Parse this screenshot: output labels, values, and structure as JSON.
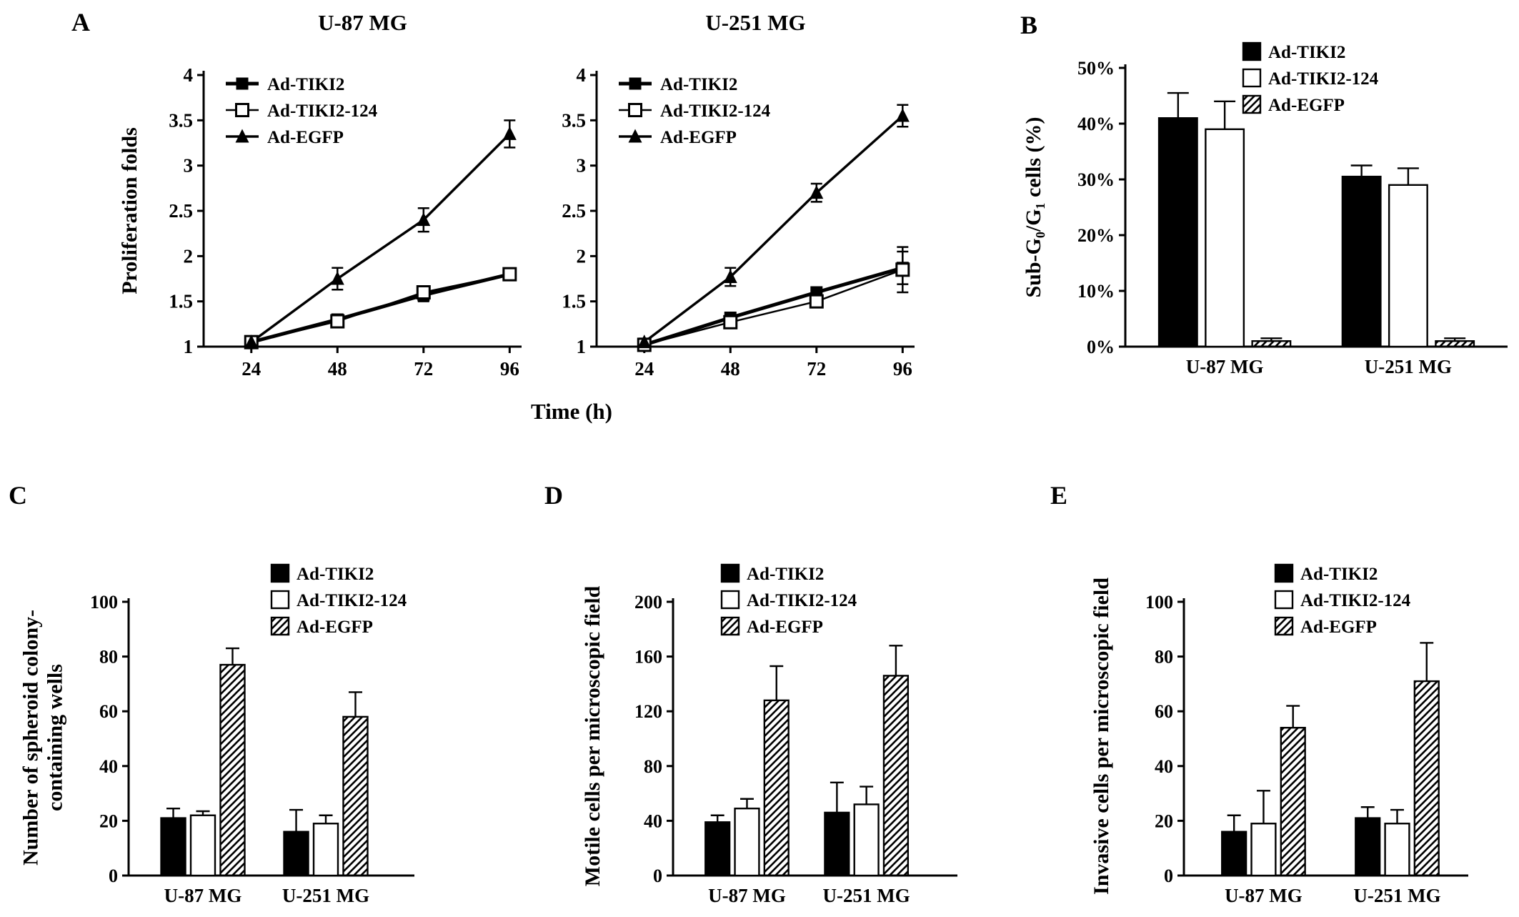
{
  "figure": {
    "background": "#ffffff",
    "ink": "#000000"
  },
  "panels": {
    "a": {
      "label": "A"
    },
    "b": {
      "label": "B"
    },
    "c": {
      "label": "C"
    },
    "d": {
      "label": "D"
    },
    "e": {
      "label": "E"
    }
  },
  "chart_data": [
    {
      "id": "prolif-u87",
      "type": "line",
      "title": "U-87 MG",
      "ylabel": "Proliferation folds",
      "xlabel": "Time (h)",
      "x": [
        24,
        48,
        72,
        96
      ],
      "ylim": [
        1,
        4
      ],
      "yticks": [
        1,
        1.5,
        2,
        2.5,
        3,
        3.5,
        4
      ],
      "legend_position": "top-left-inside",
      "series": [
        {
          "name": "Ad-TIKI2",
          "marker": "square-filled",
          "lw": 5,
          "values": [
            1.05,
            1.3,
            1.57,
            1.8
          ],
          "errors": [
            0.03,
            0.04,
            0.07,
            0.06
          ]
        },
        {
          "name": "Ad-TIKI2-124",
          "marker": "square-open",
          "lw": 2.5,
          "values": [
            1.05,
            1.28,
            1.6,
            1.8
          ],
          "errors": [
            0.03,
            0.04,
            0.05,
            0.06
          ]
        },
        {
          "name": "Ad-EGFP",
          "marker": "triangle-filled",
          "lw": 3.5,
          "values": [
            1.05,
            1.75,
            2.4,
            3.35
          ],
          "errors": [
            0.04,
            0.12,
            0.13,
            0.15
          ]
        }
      ]
    },
    {
      "id": "prolif-u251",
      "type": "line",
      "title": "U-251 MG",
      "ylabel": "Proliferation folds",
      "xlabel": "Time (h)",
      "x": [
        24,
        48,
        72,
        96
      ],
      "ylim": [
        1,
        4
      ],
      "yticks": [
        1,
        1.5,
        2,
        2.5,
        3,
        3.5,
        4
      ],
      "legend_position": "top-left-inside",
      "series": [
        {
          "name": "Ad-TIKI2",
          "marker": "square-filled",
          "lw": 5,
          "values": [
            1.02,
            1.32,
            1.6,
            1.87
          ],
          "errors": [
            0.03,
            0.05,
            0.05,
            0.18
          ]
        },
        {
          "name": "Ad-TIKI2-124",
          "marker": "square-open",
          "lw": 2.5,
          "values": [
            1.02,
            1.27,
            1.5,
            1.85
          ],
          "errors": [
            0.03,
            0.06,
            0.05,
            0.25
          ]
        },
        {
          "name": "Ad-EGFP",
          "marker": "triangle-filled",
          "lw": 3.5,
          "values": [
            1.05,
            1.77,
            2.7,
            3.55
          ],
          "errors": [
            0.04,
            0.1,
            0.1,
            0.12
          ]
        }
      ]
    },
    {
      "id": "subg1",
      "type": "bar",
      "ylabel": "Sub-G₀/G₁ cells (%)",
      "categories": [
        "U-87 MG",
        "U-251 MG"
      ],
      "ylim": [
        0,
        50
      ],
      "yticks": [
        0,
        10,
        20,
        30,
        40,
        50
      ],
      "ytick_suffix": "%",
      "legend_position": "top-right-inside",
      "series": [
        {
          "name": "Ad-TIKI2",
          "fill": "black",
          "values": [
            41,
            30.5
          ],
          "errors": [
            4.5,
            2
          ]
        },
        {
          "name": "Ad-TIKI2-124",
          "fill": "white",
          "values": [
            39,
            29
          ],
          "errors": [
            5,
            3
          ]
        },
        {
          "name": "Ad-EGFP",
          "fill": "hatch",
          "values": [
            1,
            1
          ],
          "errors": [
            0.5,
            0.5
          ]
        }
      ]
    },
    {
      "id": "spheroid",
      "type": "bar",
      "ylabel": "Number of spheroid colony-\ncontaining wells",
      "categories": [
        "U-87 MG",
        "U-251 MG"
      ],
      "ylim": [
        0,
        100
      ],
      "yticks": [
        0,
        20,
        40,
        60,
        80,
        100
      ],
      "ytick_suffix": "",
      "legend_position": "top-right-inside",
      "series": [
        {
          "name": "Ad-TIKI2",
          "fill": "black",
          "values": [
            21,
            16
          ],
          "errors": [
            3.5,
            8
          ]
        },
        {
          "name": "Ad-TIKI2-124",
          "fill": "white",
          "values": [
            22,
            19
          ],
          "errors": [
            1.5,
            3
          ]
        },
        {
          "name": "Ad-EGFP",
          "fill": "hatch",
          "values": [
            77,
            58
          ],
          "errors": [
            6,
            9
          ]
        }
      ]
    },
    {
      "id": "motile",
      "type": "bar",
      "ylabel": "Motile cells per microscopic field",
      "categories": [
        "U-87 MG",
        "U-251 MG"
      ],
      "ylim": [
        0,
        200
      ],
      "yticks": [
        0,
        40,
        80,
        120,
        160,
        200
      ],
      "ytick_suffix": "",
      "legend_position": "top-right-inside",
      "series": [
        {
          "name": "Ad-TIKI2",
          "fill": "black",
          "values": [
            39,
            46
          ],
          "errors": [
            5,
            22
          ]
        },
        {
          "name": "Ad-TIKI2-124",
          "fill": "white",
          "values": [
            49,
            52
          ],
          "errors": [
            7,
            13
          ]
        },
        {
          "name": "Ad-EGFP",
          "fill": "hatch",
          "values": [
            128,
            146
          ],
          "errors": [
            25,
            22
          ]
        }
      ]
    },
    {
      "id": "invasive",
      "type": "bar",
      "ylabel": "Invasive cells per microscopic field",
      "categories": [
        "U-87 MG",
        "U-251 MG"
      ],
      "ylim": [
        0,
        100
      ],
      "yticks": [
        0,
        20,
        40,
        60,
        80,
        100
      ],
      "ytick_suffix": "",
      "legend_position": "top-right-inside",
      "series": [
        {
          "name": "Ad-TIKI2",
          "fill": "black",
          "values": [
            16,
            21
          ],
          "errors": [
            6,
            4
          ]
        },
        {
          "name": "Ad-TIKI2-124",
          "fill": "white",
          "values": [
            19,
            19
          ],
          "errors": [
            12,
            5
          ]
        },
        {
          "name": "Ad-EGFP",
          "fill": "hatch",
          "values": [
            54,
            71
          ],
          "errors": [
            8,
            14
          ]
        }
      ]
    }
  ]
}
